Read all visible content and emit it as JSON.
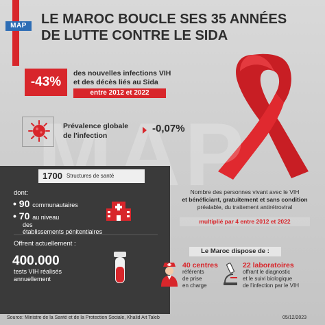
{
  "header": {
    "logo": "MAP",
    "title_line1": "LE MAROC BOUCLE SES 35 ANNÉES",
    "title_line2": "DE LUTTE CONTRE LE SIDA"
  },
  "watermark": "MAP",
  "stat_infections": {
    "value": "-43%",
    "text_line1": "des nouvelles infections VIH",
    "text_line2": "et des décès liés au Sida",
    "period": "entre 2012 et 2022"
  },
  "prevalence": {
    "label_line1": "Prévalence globale",
    "label_line2": "de l'infection",
    "value": "-0,07%"
  },
  "structures": {
    "number": "1700",
    "label": "Structures de santé",
    "dont": "dont:",
    "item1_number": "90",
    "item1_label": "communautaires",
    "item2_number": "70",
    "item2_label": "au niveau",
    "item2_label2": "des",
    "item2_label3": "établissements pénitentiaires"
  },
  "tests": {
    "intro": "Offrent actuellement :",
    "number": "400.000",
    "line1": "tests VIH réalisés",
    "line2": "annuellement"
  },
  "treatment": {
    "line1": "Nombre des personnes vivant avec le VIH",
    "line2": "et bénéficiant, gratuitement et sans condition",
    "line3": "préalable, du traitement antirétroviral",
    "multiplier": "multiplié par 4 entre 2012 et 2022"
  },
  "morocco": {
    "heading": "Le Maroc dispose de :",
    "centres_lead": "40 centres",
    "centres_l1": "référents",
    "centres_l2": "de prise",
    "centres_l3": "en charge",
    "labos_lead": "22 laboratoires",
    "labos_l1": "offrant le diagnostic",
    "labos_l2": "et le suivi biologique",
    "labos_l3": "de l'infection par le VIH"
  },
  "footer": {
    "source": "Source: Ministre de la Santé et de la Protection Sociale, Khalid Ait Taleb",
    "date": "05/12/2023"
  },
  "colors": {
    "accent_red": "#d8262b",
    "dark_panel": "#3a3a3a",
    "logo_blue": "#2d6db5"
  }
}
